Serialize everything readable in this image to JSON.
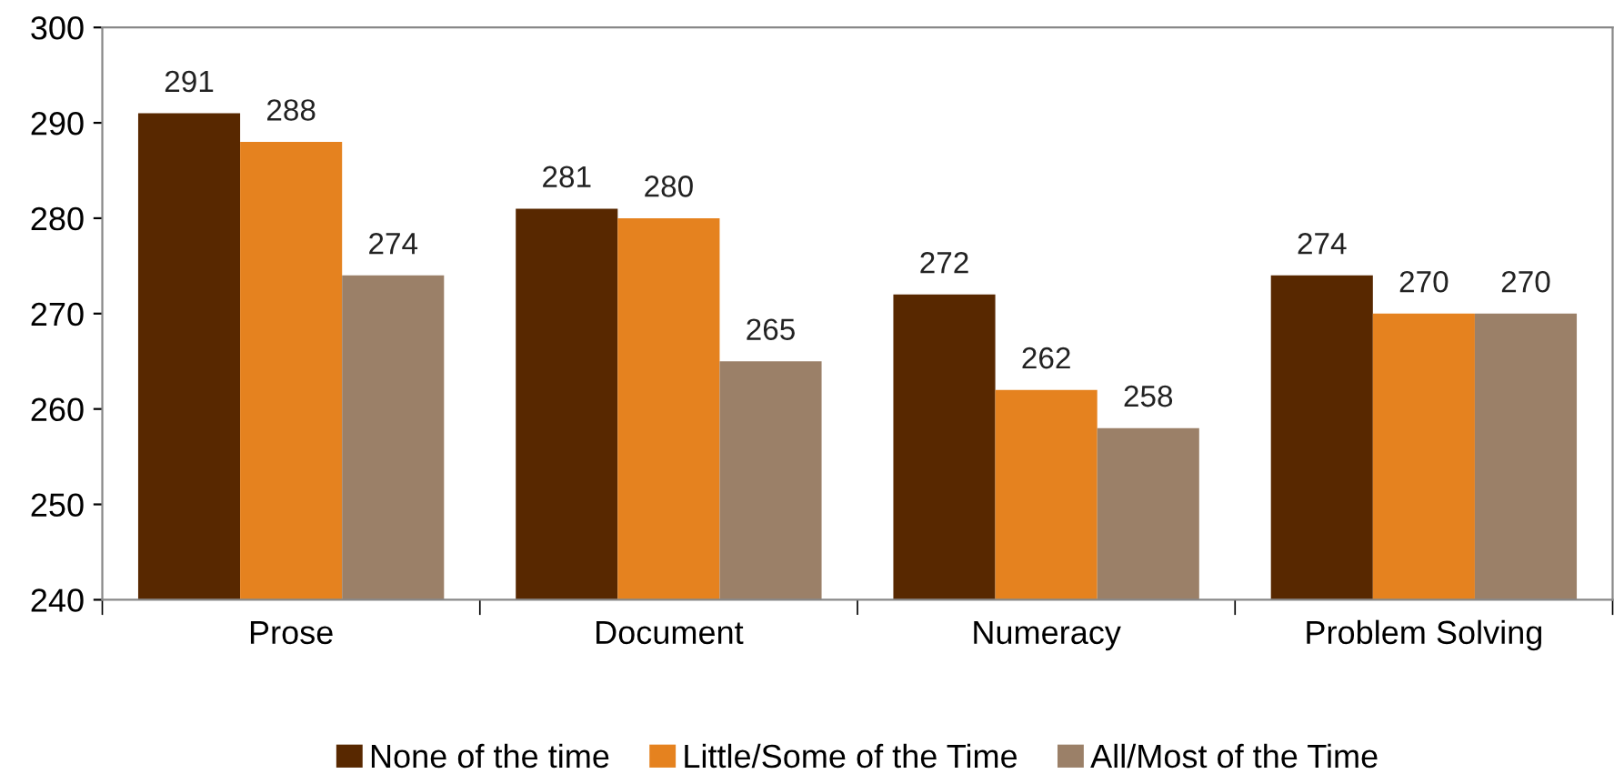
{
  "chart_data": {
    "type": "bar",
    "categories": [
      "Prose",
      "Document",
      "Numeracy",
      "Problem Solving"
    ],
    "series": [
      {
        "name": "None of the time",
        "color": "#582800",
        "values": [
          291,
          281,
          272,
          274
        ]
      },
      {
        "name": "Little/Some of the Time",
        "color": "#e5821f",
        "values": [
          288,
          280,
          262,
          270
        ]
      },
      {
        "name": "All/Most of the Time",
        "color": "#9b8068",
        "values": [
          274,
          265,
          258,
          270
        ]
      }
    ],
    "ylim": [
      240,
      300
    ],
    "yticks": [
      240,
      250,
      260,
      270,
      280,
      290,
      300
    ],
    "data_labels": true,
    "grid": false,
    "legend": "bottom"
  }
}
